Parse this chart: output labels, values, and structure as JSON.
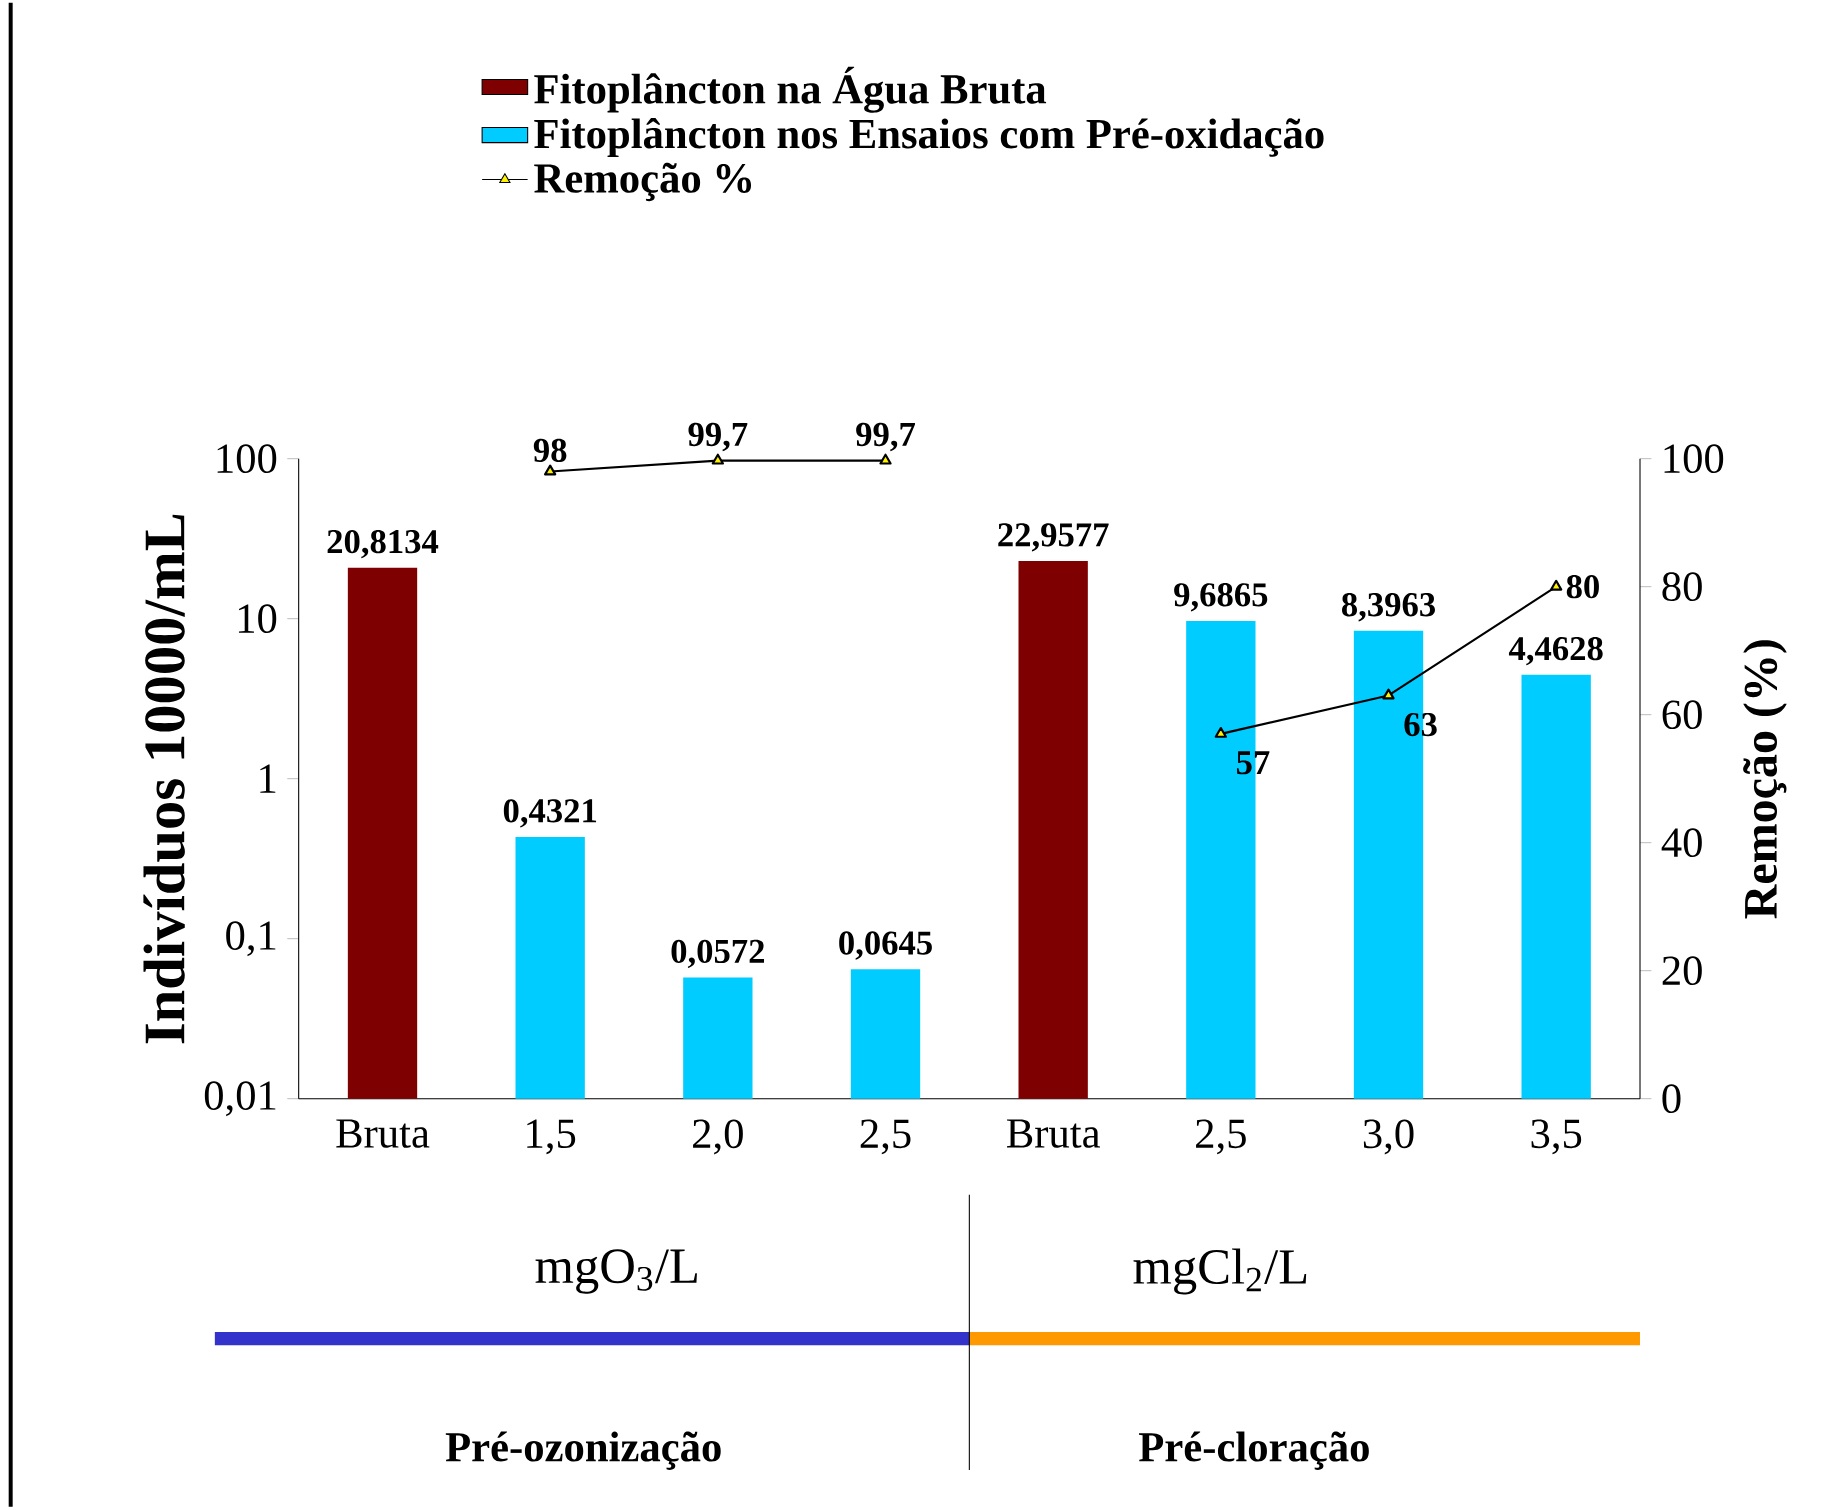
{
  "chart_data": {
    "type": "bar",
    "categories": [
      "Bruta",
      "1,5",
      "2,0",
      "2,5",
      "Bruta",
      "2,5",
      "3,0",
      "3,5"
    ],
    "series": [
      {
        "name": "Fitoplâncton na Água Bruta",
        "color": "#7f0000",
        "values": [
          20.8134,
          null,
          null,
          null,
          22.9577,
          null,
          null,
          null
        ],
        "value_labels": [
          "20,8134",
          null,
          null,
          null,
          "22,9577",
          null,
          null,
          null
        ]
      },
      {
        "name": "Fitoplâncton nos Ensaios com Pré-oxidação",
        "color": "#00ccff",
        "values": [
          null,
          0.4321,
          0.0572,
          0.0645,
          null,
          9.6865,
          8.3963,
          4.4628
        ],
        "value_labels": [
          null,
          "0,4321",
          "0,0572",
          "0,0645",
          null,
          "9,6865",
          "8,3963",
          "4,4628"
        ]
      },
      {
        "name": "Remoção %",
        "type": "line",
        "axis": "y2",
        "color": "#000000",
        "marker": "triangle",
        "values": [
          null,
          98,
          99.7,
          99.7,
          null,
          57,
          63,
          80
        ],
        "value_labels": [
          null,
          "98",
          "99,7",
          "99,7",
          null,
          "57",
          "63",
          "80"
        ]
      }
    ],
    "ylabel": "Indivíduos 10000/mL",
    "y2label": "Remoção (%)",
    "log": "y",
    "ylim": [
      0.01,
      100
    ],
    "yticks": [
      {
        "value": 0.01,
        "label": "0,01"
      },
      {
        "value": 0.1,
        "label": "0,1"
      },
      1,
      10,
      100
    ],
    "y2lim": [
      0,
      100
    ],
    "y2ticks": [
      0,
      20,
      40,
      60,
      80,
      100
    ],
    "legend": "top",
    "grid": false,
    "annotations": [
      "mgO$_{3}$/L",
      "mgCl$_{2}$/L",
      "Pré-ozonização",
      "Pré-cloração"
    ]
  }
}
